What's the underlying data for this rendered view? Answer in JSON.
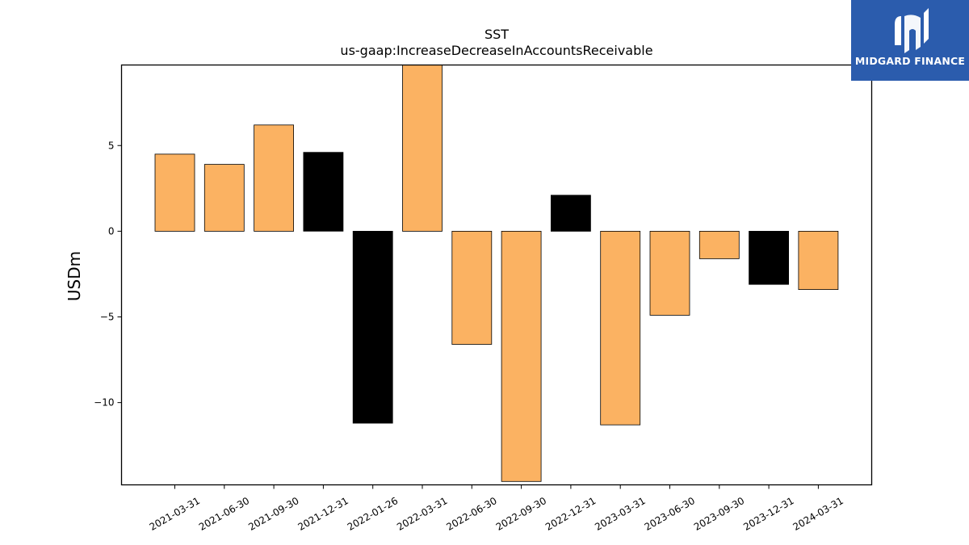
{
  "chart_data": {
    "type": "bar",
    "title": "SST",
    "subtitle": "us-gaap:IncreaseDecreaseInAccountsReceivable",
    "xlabel": "",
    "ylabel": "USDm",
    "ylim": [
      -14.8,
      9.7
    ],
    "yticks": [
      5,
      0,
      -5,
      -10
    ],
    "ytick_labels": [
      "5",
      "0",
      "−5",
      "−10"
    ],
    "grid": false,
    "categories": [
      "2021-03-31",
      "2021-06-30",
      "2021-09-30",
      "2021-12-31",
      "2022-01-26",
      "2022-03-31",
      "2022-06-30",
      "2022-09-30",
      "2022-12-31",
      "2023-03-31",
      "2023-06-30",
      "2023-09-30",
      "2023-12-31",
      "2024-03-31"
    ],
    "values": [
      4.5,
      3.9,
      6.2,
      4.6,
      -11.2,
      9.7,
      -6.6,
      -14.6,
      2.1,
      -11.3,
      -4.9,
      -1.6,
      -3.1,
      -3.4
    ],
    "bar_colors": [
      "#fbb262",
      "#fbb262",
      "#fbb262",
      "#000000",
      "#000000",
      "#fbb262",
      "#fbb262",
      "#fbb262",
      "#000000",
      "#fbb262",
      "#fbb262",
      "#fbb262",
      "#000000",
      "#fbb262"
    ]
  },
  "logo": {
    "text": "MIDGARD FINANCE",
    "color": "#2b5cad"
  }
}
